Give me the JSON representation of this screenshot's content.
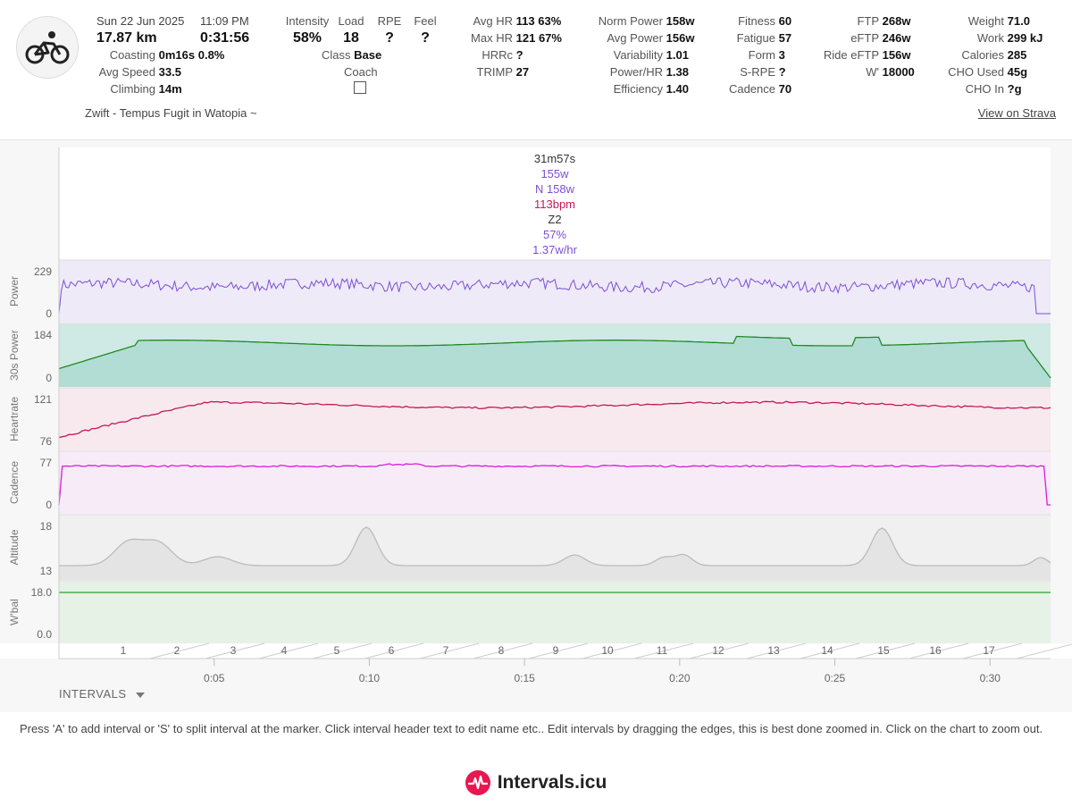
{
  "header": {
    "date": "Sun 22 Jun 2025",
    "time": "11:09 PM",
    "distance": "17.87 km",
    "duration": "0:31:56",
    "coasting": {
      "label": "Coasting",
      "value": "0m16s",
      "pct": "0.8%"
    },
    "avg_speed": {
      "label": "Avg Speed",
      "value": "33.5"
    },
    "climbing": {
      "label": "Climbing",
      "value": "14m"
    },
    "intensity": {
      "label": "Intensity",
      "value": "58%"
    },
    "load": {
      "label": "Load",
      "value": "18"
    },
    "rpe": {
      "label": "RPE",
      "value": "?"
    },
    "feel": {
      "label": "Feel",
      "value": "?"
    },
    "class": {
      "label": "Class",
      "value": "Base"
    },
    "coach": {
      "label": "Coach"
    },
    "hr_stats": [
      {
        "label": "Avg HR",
        "value": "113",
        "pct": "63%"
      },
      {
        "label": "Max HR",
        "value": "121",
        "pct": "67%"
      },
      {
        "label": "HRRc",
        "value": "?",
        "pct": ""
      },
      {
        "label": "TRIMP",
        "value": "27",
        "pct": ""
      }
    ],
    "power_stats": [
      {
        "label": "Norm Power",
        "value": "158w"
      },
      {
        "label": "Avg Power",
        "value": "156w"
      },
      {
        "label": "Variability",
        "value": "1.01"
      },
      {
        "label": "Power/HR",
        "value": "1.38"
      },
      {
        "label": "Efficiency",
        "value": "1.40"
      }
    ],
    "fitness_stats": [
      {
        "label": "Fitness",
        "value": "60"
      },
      {
        "label": "Fatigue",
        "value": "57"
      },
      {
        "label": "Form",
        "value": "3"
      },
      {
        "label": "S-RPE",
        "value": "?"
      },
      {
        "label": "Cadence",
        "value": "70"
      }
    ],
    "ftp_stats": [
      {
        "label": "FTP",
        "value": "268w"
      },
      {
        "label": "eFTP",
        "value": "246w"
      },
      {
        "label": "Ride eFTP",
        "value": "156w"
      },
      {
        "label": "W'",
        "value": "18000"
      }
    ],
    "weight_stats": [
      {
        "label": "Weight",
        "value": "71.0"
      },
      {
        "label": "Work",
        "value": "299 kJ"
      },
      {
        "label": "Calories",
        "value": "285"
      },
      {
        "label": "CHO Used",
        "value": "45g"
      },
      {
        "label": "CHO In",
        "value": "?g"
      }
    ],
    "activity_name": "Zwift - Tempus Fugit in Watopia ~",
    "strava_link": "View on Strava"
  },
  "summary": [
    "31m57s",
    "155w",
    "N 158w",
    "113bpm",
    "Z2",
    "57%",
    "1.37w/hr"
  ],
  "colors": {
    "power": "#7b4fd6",
    "power30": "#1f8a1f",
    "hr": "#c2185b",
    "cadence": "#d81bd8",
    "altitude": "#cccccc",
    "wbal": "#2e9e2e",
    "brand": "#e8174f"
  },
  "chart_data": {
    "type": "line",
    "x_time_ticks": [
      "0:05",
      "0:10",
      "0:15",
      "0:20",
      "0:25",
      "0:30"
    ],
    "x_interval_ticks": [
      "1",
      "2",
      "3",
      "4",
      "5",
      "6",
      "7",
      "8",
      "9",
      "10",
      "11",
      "12",
      "13",
      "14",
      "15",
      "16",
      "17"
    ],
    "duration_min": 31.95,
    "plots": [
      {
        "name": "Power",
        "ymin": 0,
        "ymax": 229,
        "tick_labels": [
          "229",
          "0"
        ]
      },
      {
        "name": "30s Power",
        "ymin": 0,
        "ymax": 184,
        "tick_labels": [
          "184",
          "0"
        ]
      },
      {
        "name": "Heartrate",
        "ymin": 76,
        "ymax": 121,
        "tick_labels": [
          "121",
          "76"
        ]
      },
      {
        "name": "Cadence",
        "ymin": 0,
        "ymax": 77,
        "tick_labels": [
          "77",
          "0"
        ]
      },
      {
        "name": "Altitude",
        "ymin": 13,
        "ymax": 18,
        "tick_labels": [
          "18",
          "13"
        ]
      },
      {
        "name": "W'bal",
        "ymin": 0,
        "ymax": 18,
        "tick_labels": [
          "18.0",
          "0.0"
        ]
      }
    ]
  },
  "intervals_label": "INTERVALS",
  "help_text": "Press 'A' to add interval or 'S' to split interval at the marker. Click interval header text to edit name etc.. Edit intervals by dragging the edges, this is best done zoomed in. Click on the chart to zoom out.",
  "brand": "Intervals.icu"
}
